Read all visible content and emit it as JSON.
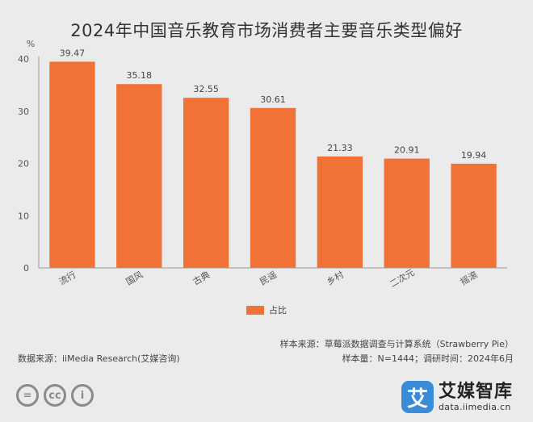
{
  "chart_data": {
    "type": "bar",
    "title": "2024年中国音乐教育市场消费者主要音乐类型偏好",
    "ylabel": "%",
    "ylim": [
      0,
      40
    ],
    "yticks": [
      0,
      10,
      20,
      30,
      40
    ],
    "categories": [
      "流行",
      "国风",
      "古典",
      "民谣",
      "乡村",
      "二次元",
      "摇滚"
    ],
    "series": [
      {
        "name": "占比",
        "values": [
          39.47,
          35.18,
          32.55,
          30.61,
          21.33,
          20.91,
          19.94
        ],
        "color": "#f07236"
      }
    ],
    "legend_position": "bottom-center",
    "grid": false
  },
  "source": {
    "sample_source": "样本来源：草莓派数据调查与计算系统（Strawberry Pie）",
    "sample_info": "样本量：N=1444；调研时间：2024年6月",
    "data_source": "数据来源：iiMedia Research(艾媒咨询)"
  },
  "license_icons": [
    "equals-icon",
    "cc-icon",
    "person-icon"
  ],
  "license_glyphs": [
    "=",
    "cc",
    "i"
  ],
  "logo": {
    "mark": "艾",
    "name": "艾媒智库",
    "url": "data.iimedia.cn",
    "color": "#3a8bd8"
  }
}
